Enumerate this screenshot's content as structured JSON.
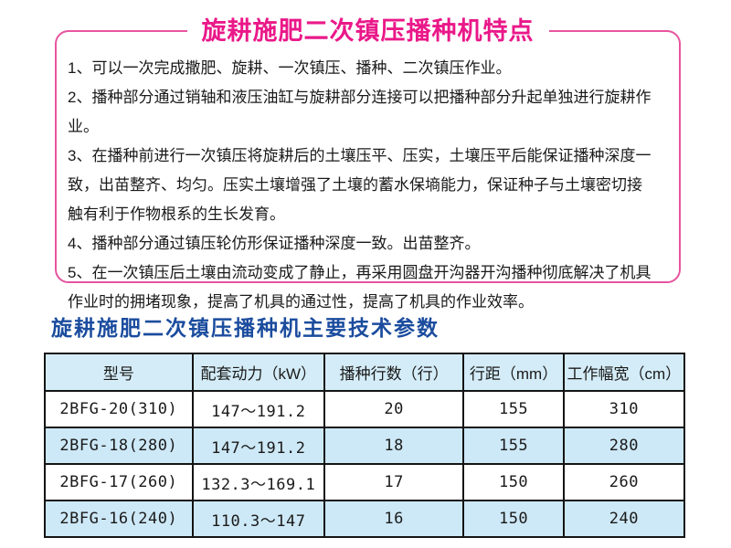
{
  "page": {
    "title": "旋耕施肥二次镇压播种机特点",
    "section_title": "旋耕施肥二次镇压播种机主要技术参数"
  },
  "features": {
    "items": [
      "1、可以一次完成撒肥、旋耕、一次镇压、播种、二次镇压作业。",
      "2、播种部分通过销轴和液压油缸与旋耕部分连接可以把播种部分升起单独进行旋耕作业。",
      "3、在播种前进行一次镇压将旋耕后的土壤压平、压实，土壤压平后能保证播种深度一致，出苗整齐、均匀。压实土壤增强了土壤的蓄水保墒能力，保证种子与土壤密切接触有利于作物根系的生长发育。",
      "4、播种部分通过镇压轮仿形保证播种深度一致。出苗整齐。",
      "5、在一次镇压后土壤由流动变成了静止，再采用圆盘开沟器开沟播种彻底解决了机具作业时的拥堵现象，提高了机具的通过性，提高了机具的作业效率。"
    ]
  },
  "spec_table": {
    "headers": [
      "型号",
      "配套动力（kW）",
      "播种行数（行）",
      "行距（mm）",
      "工作幅宽（cm）"
    ],
    "rows": [
      [
        "2BFG-20(310)",
        "147～191.2",
        "20",
        "155",
        "310"
      ],
      [
        "2BFG-18(280)",
        "147～191.2",
        "18",
        "155",
        "280"
      ],
      [
        "2BFG-17(260)",
        "132.3～169.1",
        "17",
        "150",
        "260"
      ],
      [
        "2BFG-16(240)",
        "110.3～147",
        "16",
        "150",
        "240"
      ]
    ]
  },
  "colors": {
    "accent_magenta": "#ea1889",
    "box_border_pink": "#e8549e",
    "section_title_blue": "#1b4c9e",
    "table_header_bg": "#d4ecf7",
    "table_alt_row_bg": "#cde8f6",
    "table_border": "#141414"
  }
}
